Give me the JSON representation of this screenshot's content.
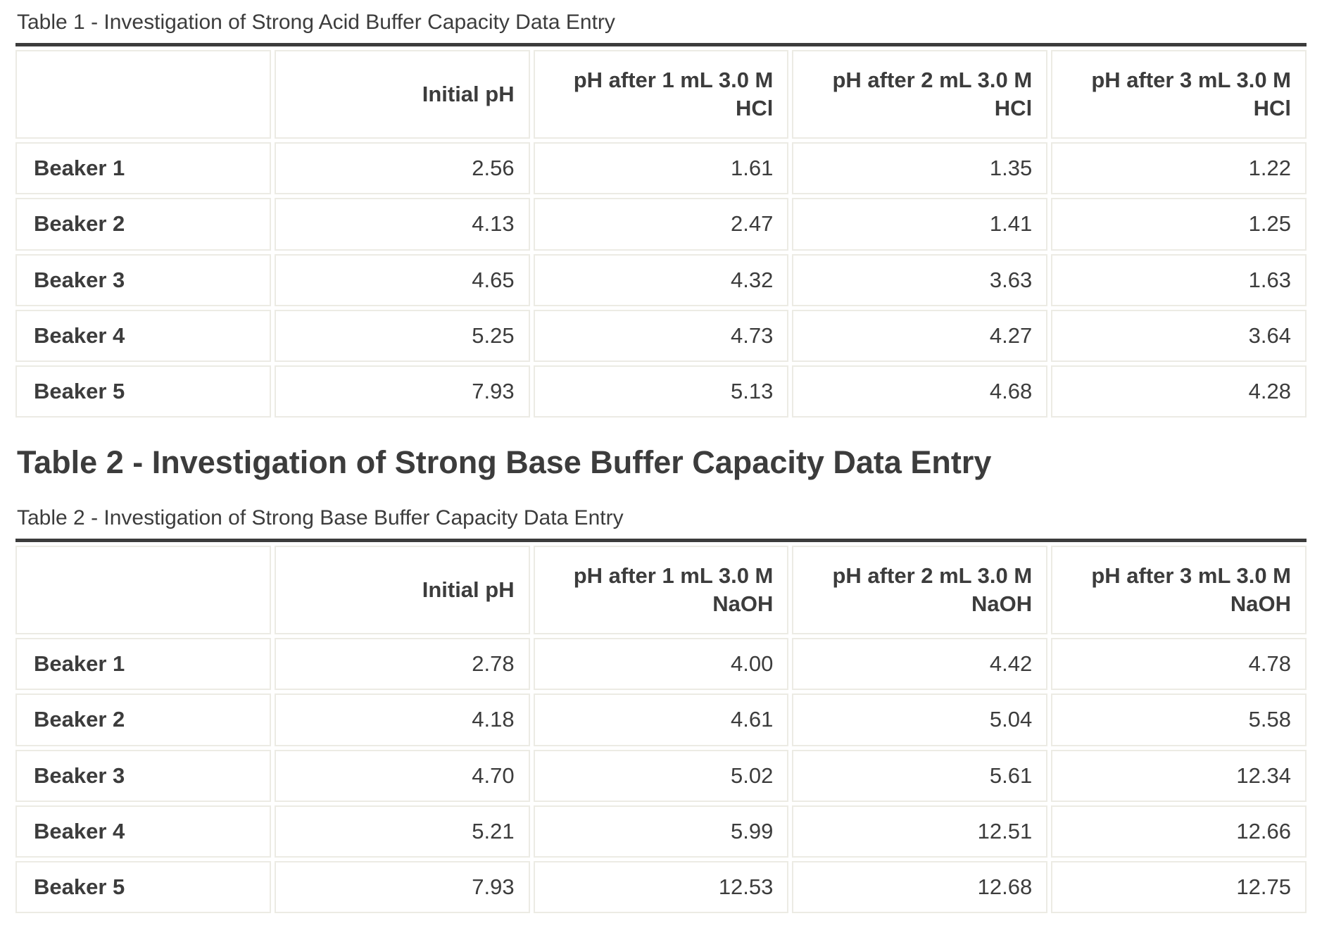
{
  "colors": {
    "text": "#3c3c3c",
    "rule": "#3c3c3c",
    "cell_border": "#ecebe4",
    "background": "#ffffff"
  },
  "tables": [
    {
      "caption": "Table 1 - Investigation of Strong Acid Buffer Capacity Data Entry",
      "columns": [
        "",
        "Initial pH",
        "pH after 1 mL 3.0 M HCl",
        "pH after 2 mL 3.0 M HCl",
        "pH after 3 mL 3.0 M HCl"
      ],
      "rows": [
        {
          "label": "Beaker 1",
          "values": [
            "2.56",
            "1.61",
            "1.35",
            "1.22"
          ]
        },
        {
          "label": "Beaker 2",
          "values": [
            "4.13",
            "2.47",
            "1.41",
            "1.25"
          ]
        },
        {
          "label": "Beaker 3",
          "values": [
            "4.65",
            "4.32",
            "3.63",
            "1.63"
          ]
        },
        {
          "label": "Beaker 4",
          "values": [
            "5.25",
            "4.73",
            "4.27",
            "3.64"
          ]
        },
        {
          "label": "Beaker 5",
          "values": [
            "7.93",
            "5.13",
            "4.68",
            "4.28"
          ]
        }
      ]
    },
    {
      "heading": "Table 2 - Investigation of Strong Base Buffer Capacity Data Entry",
      "caption": "Table 2 - Investigation of Strong Base Buffer Capacity Data Entry",
      "columns": [
        "",
        "Initial pH",
        "pH after 1 mL 3.0 M NaOH",
        "pH after 2 mL 3.0 M NaOH",
        "pH after 3 mL 3.0 M NaOH"
      ],
      "rows": [
        {
          "label": "Beaker 1",
          "values": [
            "2.78",
            "4.00",
            "4.42",
            "4.78"
          ]
        },
        {
          "label": "Beaker 2",
          "values": [
            "4.18",
            "4.61",
            "5.04",
            "5.58"
          ]
        },
        {
          "label": "Beaker 3",
          "values": [
            "4.70",
            "5.02",
            "5.61",
            "12.34"
          ]
        },
        {
          "label": "Beaker 4",
          "values": [
            "5.21",
            "5.99",
            "12.51",
            "12.66"
          ]
        },
        {
          "label": "Beaker 5",
          "values": [
            "7.93",
            "12.53",
            "12.68",
            "12.75"
          ]
        }
      ]
    }
  ]
}
